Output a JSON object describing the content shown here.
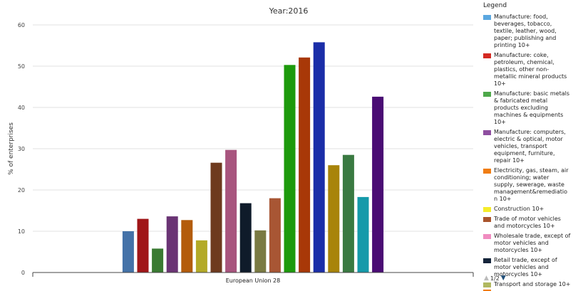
{
  "chart_data": {
    "type": "bar",
    "title": "Year:2016",
    "ylabel": "% of enterprises",
    "xlabel": "",
    "categories": [
      "European Union 28"
    ],
    "ylim": [
      0,
      60
    ],
    "yticks": [
      0,
      10,
      20,
      30,
      40,
      50,
      60
    ],
    "grid": true,
    "legend_position": "right",
    "legend_title": "Legend",
    "series": [
      {
        "name": "Manufacture: food, beverages, tobacco, textile, leather, wood, paper; publishing and printing 10+",
        "value": 10.0,
        "color": "#4472a8"
      },
      {
        "name": "Manufacture: coke, petroleum, chemical, plastics, other non-metallic mineral products 10+",
        "value": 13.0,
        "color": "#a01618"
      },
      {
        "name": "Manufacture: basic metals & fabricated metal products excluding machines & equipments 10+",
        "value": 5.8,
        "color": "#3a7a32"
      },
      {
        "name": "Manufacture: computers, electric & optical, motor vehicles, transport equipment, furniture, repair 10+",
        "value": 13.6,
        "color": "#6a3474"
      },
      {
        "name": "Electricity, gas, steam, air conditioning; water supply, sewerage, waste management&remediation 10+",
        "value": 12.7,
        "color": "#b35c0c"
      },
      {
        "name": "Construction 10+",
        "value": 7.8,
        "color": "#b3aa28"
      },
      {
        "name": "Trade of motor vehicles and motorcycles 10+",
        "value": 26.6,
        "color": "#6e3a1e"
      },
      {
        "name": "Wholesale trade, except of motor vehicles and motorcycles 10+",
        "value": 29.7,
        "color": "#a8557e"
      },
      {
        "name": "Retail trade, except of motor vehicles and motorcycles 10+",
        "value": 16.8,
        "color": "#0f1b2a"
      },
      {
        "name": "Transport and storage 10+",
        "value": 10.2,
        "color": "#7a7a42"
      },
      {
        "name": "",
        "value": 18.0,
        "color": "#a85634"
      },
      {
        "name": "",
        "value": 50.3,
        "color": "#1d9a0c"
      },
      {
        "name": "",
        "value": 52.1,
        "color": "#a83808"
      },
      {
        "name": "",
        "value": 55.8,
        "color": "#1b2ea8"
      },
      {
        "name": "",
        "value": 26.0,
        "color": "#a8840a"
      },
      {
        "name": "",
        "value": 28.5,
        "color": "#3a7a42"
      },
      {
        "name": "",
        "value": 18.3,
        "color": "#159aaa"
      },
      {
        "name": "",
        "value": 42.6,
        "color": "#4a0c74"
      }
    ],
    "legend_colors": [
      "#5aa7e0",
      "#d42a22",
      "#4ea84a",
      "#8e4ea0",
      "#f07d12",
      "#f5ec2a",
      "#a9542c",
      "#f08cc0",
      "#14243a",
      "#b0b860",
      "#f07d12"
    ]
  },
  "legend": {
    "title": "Legend",
    "pager": "1/2"
  }
}
